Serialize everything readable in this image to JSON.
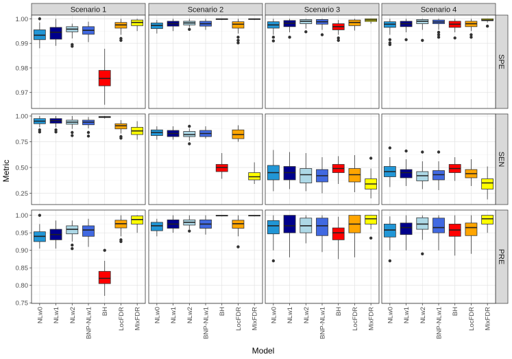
{
  "chart_data": {
    "type": "boxplot",
    "xlabel": "Model",
    "ylabel": "Metric",
    "colors": {
      "NLw0": "#2196d6",
      "NLw1": "#00008b",
      "NLw2": "#add8e6",
      "BNP-NLw1": "#4169e1",
      "BH": "#ff0000",
      "LocFDR": "#ffa500",
      "MixFDR": "#ffff00"
    },
    "scenarios": [
      "Scenario 1",
      "Scenario 2",
      "Scenario 3",
      "Scenario 4"
    ],
    "models": [
      "NLw0",
      "NLw1",
      "NLw2",
      "BNP-NLw1",
      "BH",
      "LocFDR",
      "MixFDR"
    ],
    "metrics": [
      {
        "name": "SPE",
        "ylim": [
          0.9635,
          1.0015
        ],
        "ticks": [
          0.97,
          0.98,
          0.99,
          1.0
        ],
        "tick_labels": [
          "0.97",
          "0.98",
          "0.99",
          "1.00"
        ],
        "boxes": [
          [
            {
              "min": 0.988,
              "q1": 0.9915,
              "med": 0.9933,
              "q3": 0.9955,
              "max": 0.9985,
              "out": [
                1.0
              ]
            },
            {
              "min": 0.989,
              "q1": 0.9917,
              "med": 0.9945,
              "q3": 0.9965,
              "max": 1.0,
              "out": []
            },
            {
              "min": 0.992,
              "q1": 0.9947,
              "med": 0.9958,
              "q3": 0.9968,
              "max": 0.998,
              "out": [
                0.9895,
                0.9888
              ]
            },
            {
              "min": 0.9905,
              "q1": 0.9937,
              "med": 0.9953,
              "q3": 0.9968,
              "max": 0.9988,
              "out": []
            },
            {
              "min": 0.965,
              "q1": 0.9727,
              "med": 0.9757,
              "q3": 0.979,
              "max": 0.9878,
              "out": []
            },
            {
              "min": 0.9935,
              "q1": 0.9962,
              "med": 0.9975,
              "q3": 0.9985,
              "max": 1.0,
              "out": [
                0.992,
                0.9912
              ]
            },
            {
              "min": 0.995,
              "q1": 0.9972,
              "med": 0.9985,
              "q3": 0.9995,
              "max": 1.0,
              "out": []
            }
          ],
          [
            {
              "min": 0.994,
              "q1": 0.996,
              "med": 0.9973,
              "q3": 0.9983,
              "max": 0.9995,
              "out": []
            },
            {
              "min": 0.995,
              "q1": 0.997,
              "med": 0.998,
              "q3": 0.999,
              "max": 1.0,
              "out": []
            },
            {
              "min": 0.9965,
              "q1": 0.9975,
              "med": 0.9983,
              "q3": 0.999,
              "max": 1.0,
              "out": [
                0.9957
              ]
            },
            {
              "min": 0.9955,
              "q1": 0.997,
              "med": 0.998,
              "q3": 0.999,
              "max": 1.0,
              "out": []
            },
            {
              "min": 0.9995,
              "q1": 0.9997,
              "med": 0.9999,
              "q3": 1.0,
              "max": 1.0,
              "out": []
            },
            {
              "min": 0.994,
              "q1": 0.9962,
              "med": 0.9978,
              "q3": 0.9988,
              "max": 1.0,
              "out": [
                0.9925,
                0.9912,
                0.9902
              ]
            },
            {
              "min": 0.9995,
              "q1": 0.9997,
              "med": 0.9999,
              "q3": 1.0,
              "max": 1.0,
              "out": []
            }
          ],
          [
            {
              "min": 0.9935,
              "q1": 0.9962,
              "med": 0.9975,
              "q3": 0.9988,
              "max": 1.0,
              "out": [
                0.9925,
                0.991
              ]
            },
            {
              "min": 0.9945,
              "q1": 0.9968,
              "med": 0.9982,
              "q3": 0.9993,
              "max": 1.0,
              "out": [
                0.9925
              ]
            },
            {
              "min": 0.996,
              "q1": 0.998,
              "med": 0.999,
              "q3": 0.9997,
              "max": 1.0,
              "out": [
                0.9947
              ]
            },
            {
              "min": 0.9955,
              "q1": 0.9978,
              "med": 0.9988,
              "q3": 0.9997,
              "max": 1.0,
              "out": [
                0.9935
              ]
            },
            {
              "min": 0.9935,
              "q1": 0.9955,
              "med": 0.9968,
              "q3": 0.998,
              "max": 0.9995,
              "out": [
                0.9922,
                0.9912
              ]
            },
            {
              "min": 0.9952,
              "q1": 0.9972,
              "med": 0.9985,
              "q3": 0.9995,
              "max": 1.0,
              "out": []
            },
            {
              "min": 0.998,
              "q1": 0.9989,
              "med": 0.9995,
              "q3": 1.0,
              "max": 1.0,
              "out": []
            }
          ],
          [
            {
              "min": 0.9935,
              "q1": 0.9965,
              "med": 0.9978,
              "q3": 0.9988,
              "max": 1.0,
              "out": [
                0.9915,
                0.9902,
                0.9895
              ]
            },
            {
              "min": 0.9945,
              "q1": 0.9968,
              "med": 0.998,
              "q3": 0.999,
              "max": 1.0,
              "out": [
                0.9915
              ]
            },
            {
              "min": 0.9955,
              "q1": 0.998,
              "med": 0.999,
              "q3": 0.9997,
              "max": 1.0,
              "out": [
                0.9912
              ]
            },
            {
              "min": 0.9955,
              "q1": 0.998,
              "med": 0.9987,
              "q3": 0.9995,
              "max": 1.0,
              "out": [
                0.9945,
                0.9935,
                0.9925
              ]
            },
            {
              "min": 0.9945,
              "q1": 0.9965,
              "med": 0.9978,
              "q3": 0.999,
              "max": 1.0,
              "out": [
                0.9922
              ]
            },
            {
              "min": 0.995,
              "q1": 0.9968,
              "med": 0.998,
              "q3": 0.999,
              "max": 1.0,
              "out": [
                0.9935,
                0.9925
              ]
            },
            {
              "min": 0.9985,
              "q1": 0.9992,
              "med": 0.9995,
              "q3": 1.0,
              "max": 1.0,
              "out": [
                0.997
              ]
            }
          ]
        ]
      },
      {
        "name": "SEN",
        "ylim": [
          0.14,
          1.02
        ],
        "ticks": [
          0.25,
          0.5,
          0.75,
          1.0
        ],
        "tick_labels": [
          "0.25",
          "0.50",
          "0.75",
          "1.00"
        ],
        "boxes": [
          [
            {
              "min": 0.89,
              "q1": 0.925,
              "med": 0.95,
              "q3": 0.975,
              "max": 1.0,
              "out": [
                0.865,
                0.845
              ]
            },
            {
              "min": 0.89,
              "q1": 0.93,
              "med": 0.955,
              "q3": 0.975,
              "max": 1.0,
              "out": [
                0.865,
                0.845
              ]
            },
            {
              "min": 0.875,
              "q1": 0.92,
              "med": 0.94,
              "q3": 0.96,
              "max": 1.0,
              "out": [
                0.84,
                0.81
              ]
            },
            {
              "min": 0.88,
              "q1": 0.915,
              "med": 0.94,
              "q3": 0.96,
              "max": 0.99,
              "out": [
                0.84,
                0.805
              ]
            },
            {
              "min": 0.975,
              "q1": 0.985,
              "med": 0.99,
              "q3": 0.995,
              "max": 1.0,
              "out": []
            },
            {
              "min": 0.83,
              "q1": 0.875,
              "med": 0.905,
              "q3": 0.925,
              "max": 0.96,
              "out": [
                0.8,
                0.785
              ]
            },
            {
              "min": 0.77,
              "q1": 0.82,
              "med": 0.855,
              "q3": 0.89,
              "max": 0.95,
              "out": []
            }
          ],
          [
            {
              "min": 0.77,
              "q1": 0.81,
              "med": 0.84,
              "q3": 0.865,
              "max": 0.9,
              "out": []
            },
            {
              "min": 0.77,
              "q1": 0.8,
              "med": 0.83,
              "q3": 0.86,
              "max": 0.9,
              "out": []
            },
            {
              "min": 0.76,
              "q1": 0.8,
              "med": 0.82,
              "q3": 0.85,
              "max": 0.88,
              "out": [
                0.9,
                0.73
              ]
            },
            {
              "min": 0.78,
              "q1": 0.8,
              "med": 0.83,
              "q3": 0.86,
              "max": 0.9,
              "out": []
            },
            {
              "min": 0.39,
              "q1": 0.46,
              "med": 0.5,
              "q3": 0.53,
              "max": 0.64,
              "out": []
            },
            {
              "min": 0.75,
              "q1": 0.78,
              "med": 0.82,
              "q3": 0.865,
              "max": 0.91,
              "out": []
            },
            {
              "min": 0.34,
              "q1": 0.38,
              "med": 0.41,
              "q3": 0.45,
              "max": 0.55,
              "out": []
            }
          ],
          [
            {
              "min": 0.27,
              "q1": 0.38,
              "med": 0.45,
              "q3": 0.52,
              "max": 0.67,
              "out": []
            },
            {
              "min": 0.29,
              "q1": 0.38,
              "med": 0.45,
              "q3": 0.51,
              "max": 0.65,
              "out": []
            },
            {
              "min": 0.27,
              "q1": 0.35,
              "med": 0.43,
              "q3": 0.49,
              "max": 0.64,
              "out": []
            },
            {
              "min": 0.25,
              "q1": 0.36,
              "med": 0.42,
              "q3": 0.48,
              "max": 0.6,
              "out": []
            },
            {
              "min": 0.34,
              "q1": 0.45,
              "med": 0.49,
              "q3": 0.53,
              "max": 0.61,
              "out": []
            },
            {
              "min": 0.26,
              "q1": 0.36,
              "med": 0.43,
              "q3": 0.49,
              "max": 0.62,
              "out": []
            },
            {
              "min": 0.2,
              "q1": 0.29,
              "med": 0.34,
              "q3": 0.39,
              "max": 0.49,
              "out": [
                0.59
              ]
            }
          ],
          [
            {
              "min": 0.31,
              "q1": 0.41,
              "med": 0.46,
              "q3": 0.51,
              "max": 0.6,
              "out": [
                0.69
              ]
            },
            {
              "min": 0.32,
              "q1": 0.4,
              "med": 0.45,
              "q3": 0.48,
              "max": 0.58,
              "out": [
                0.66
              ]
            },
            {
              "min": 0.29,
              "q1": 0.37,
              "med": 0.42,
              "q3": 0.46,
              "max": 0.56,
              "out": [
                0.65
              ]
            },
            {
              "min": 0.28,
              "q1": 0.38,
              "med": 0.43,
              "q3": 0.47,
              "max": 0.56,
              "out": [
                0.65
              ]
            },
            {
              "min": 0.37,
              "q1": 0.45,
              "med": 0.49,
              "q3": 0.53,
              "max": 0.6,
              "out": []
            },
            {
              "min": 0.32,
              "q1": 0.4,
              "med": 0.44,
              "q3": 0.48,
              "max": 0.58,
              "out": []
            },
            {
              "min": 0.19,
              "q1": 0.29,
              "med": 0.35,
              "q3": 0.39,
              "max": 0.51,
              "out": []
            }
          ]
        ]
      },
      {
        "name": "PRE",
        "ylim": [
          0.7485,
          1.015
        ],
        "ticks": [
          0.75,
          0.8,
          0.85,
          0.9,
          0.95,
          1.0
        ],
        "tick_labels": [
          "0.75",
          "0.80",
          "0.85",
          "0.90",
          "0.95",
          "1.00"
        ],
        "boxes": [
          [
            {
              "min": 0.905,
              "q1": 0.925,
              "med": 0.94,
              "q3": 0.953,
              "max": 0.975,
              "out": [
                1.0
              ]
            },
            {
              "min": 0.905,
              "q1": 0.93,
              "med": 0.945,
              "q3": 0.96,
              "max": 0.985,
              "out": []
            },
            {
              "min": 0.925,
              "q1": 0.947,
              "med": 0.96,
              "q3": 0.97,
              "max": 0.985,
              "out": [
                0.915,
                0.905
              ]
            },
            {
              "min": 0.91,
              "q1": 0.94,
              "med": 0.958,
              "q3": 0.97,
              "max": 0.99,
              "out": []
            },
            {
              "min": 0.77,
              "q1": 0.805,
              "med": 0.82,
              "q3": 0.84,
              "max": 0.87,
              "out": [
                0.9
              ]
            },
            {
              "min": 0.94,
              "q1": 0.964,
              "med": 0.976,
              "q3": 0.986,
              "max": 1.0,
              "out": [
                0.93,
                0.925
              ]
            },
            {
              "min": 0.95,
              "q1": 0.975,
              "med": 0.988,
              "q3": 0.998,
              "max": 1.0,
              "out": []
            }
          ],
          [
            {
              "min": 0.94,
              "q1": 0.956,
              "med": 0.97,
              "q3": 0.98,
              "max": 0.99,
              "out": []
            },
            {
              "min": 0.95,
              "q1": 0.963,
              "med": 0.975,
              "q3": 0.987,
              "max": 1.0,
              "out": []
            },
            {
              "min": 0.96,
              "q1": 0.972,
              "med": 0.98,
              "q3": 0.987,
              "max": 1.0,
              "out": [
                0.955
              ]
            },
            {
              "min": 0.945,
              "q1": 0.963,
              "med": 0.975,
              "q3": 0.987,
              "max": 1.0,
              "out": []
            },
            {
              "min": 0.997,
              "q1": 0.998,
              "med": 0.999,
              "q3": 1.0,
              "max": 1.0,
              "out": []
            },
            {
              "min": 0.94,
              "q1": 0.963,
              "med": 0.976,
              "q3": 0.986,
              "max": 1.0,
              "out": [
                0.91
              ]
            },
            {
              "min": 0.997,
              "q1": 0.998,
              "med": 0.999,
              "q3": 1.0,
              "max": 1.0,
              "out": []
            }
          ],
          [
            {
              "min": 0.9,
              "q1": 0.947,
              "med": 0.97,
              "q3": 0.985,
              "max": 1.0,
              "out": [
                0.87
              ]
            },
            {
              "min": 0.88,
              "q1": 0.95,
              "med": 0.97,
              "q3": 1.0,
              "max": 1.0,
              "out": []
            },
            {
              "min": 0.92,
              "q1": 0.95,
              "med": 0.97,
              "q3": 0.992,
              "max": 1.0,
              "out": []
            },
            {
              "min": 0.895,
              "q1": 0.942,
              "med": 0.97,
              "q3": 0.992,
              "max": 1.0,
              "out": []
            },
            {
              "min": 0.875,
              "q1": 0.93,
              "med": 0.95,
              "q3": 0.964,
              "max": 0.996,
              "out": []
            },
            {
              "min": 0.88,
              "q1": 0.95,
              "med": 0.975,
              "q3": 1.0,
              "max": 1.0,
              "out": []
            },
            {
              "min": 0.96,
              "q1": 0.975,
              "med": 0.99,
              "q3": 1.0,
              "max": 1.0,
              "out": [
                0.935
              ]
            }
          ],
          [
            {
              "min": 0.9,
              "q1": 0.938,
              "med": 0.958,
              "q3": 0.975,
              "max": 0.997,
              "out": [
                0.87
              ]
            },
            {
              "min": 0.9,
              "q1": 0.945,
              "med": 0.965,
              "q3": 0.978,
              "max": 1.0,
              "out": []
            },
            {
              "min": 0.93,
              "q1": 0.96,
              "med": 0.975,
              "q3": 0.993,
              "max": 1.0,
              "out": [
                0.89
              ]
            },
            {
              "min": 0.9,
              "q1": 0.95,
              "med": 0.965,
              "q3": 0.992,
              "max": 1.0,
              "out": []
            },
            {
              "min": 0.885,
              "q1": 0.94,
              "med": 0.958,
              "q3": 0.975,
              "max": 1.0,
              "out": []
            },
            {
              "min": 0.89,
              "q1": 0.942,
              "med": 0.965,
              "q3": 0.978,
              "max": 1.0,
              "out": []
            },
            {
              "min": 0.95,
              "q1": 0.975,
              "med": 0.99,
              "q3": 1.0,
              "max": 1.0,
              "out": []
            }
          ]
        ]
      }
    ]
  }
}
